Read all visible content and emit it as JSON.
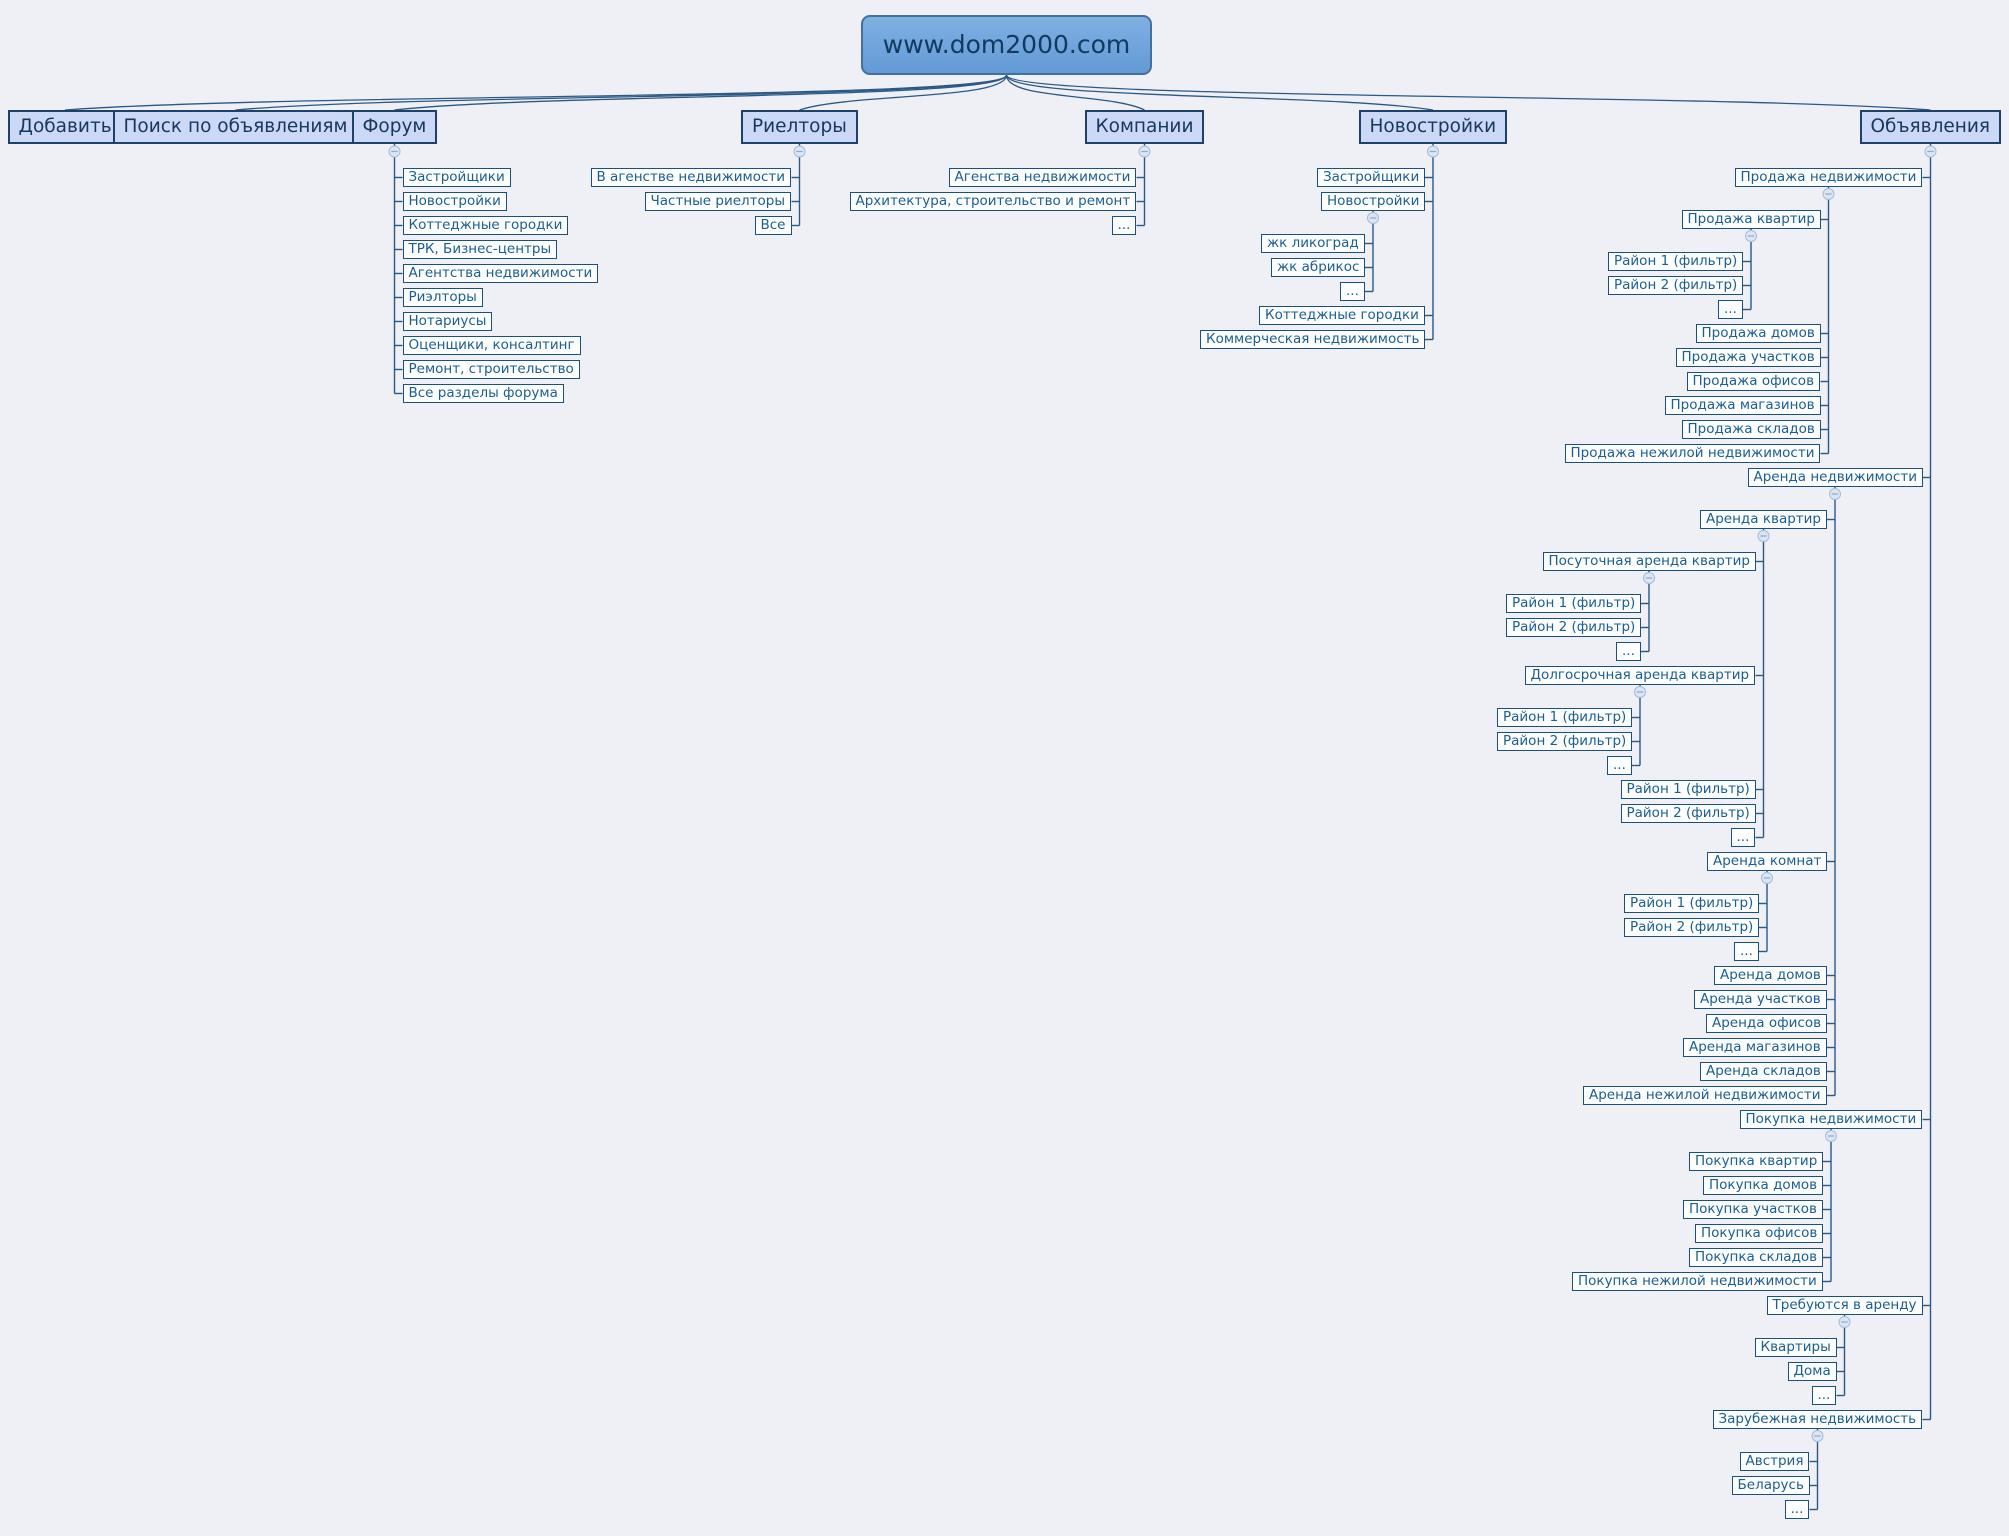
{
  "root": {
    "label": "www.dom2000.com"
  },
  "colors": {
    "page_bg": "#eef0f6",
    "root_fill_top": "#7fb0e2",
    "root_fill_bottom": "#639ad6",
    "root_border": "#41719c",
    "root_text": "#123a61",
    "level1_fill": "#ccd9f6",
    "level1_border": "#1d4168",
    "level1_text": "#17375e",
    "node_fill": "#fcfdff",
    "node_border": "#1c4f7d",
    "node_text": "#1c5e8f",
    "line": "#2b5984",
    "toggle_fill": "#dbe5f4",
    "toggle_border": "#a3bcd9",
    "toggle_glyph": "#8fa9c9"
  },
  "toggle_glyph": "minus",
  "tree": [
    {
      "label": "Добавить"
    },
    {
      "label": "Поиск по объявлениям"
    },
    {
      "label": "Форум",
      "children": [
        "Застройщики",
        "Новостройки",
        "Коттеджные городки",
        "ТРК, Бизнес-центры",
        "Агентства недвижимости",
        "Риэлторы",
        "Нотариусы",
        "Оценщики, консалтинг",
        "Ремонт, строительство",
        "Все разделы форума"
      ]
    },
    {
      "label": "Риелторы",
      "children": [
        "В агенстве недвижимости",
        "Частные риелторы",
        "Все"
      ]
    },
    {
      "label": "Компании",
      "children": [
        "Агенства недвижимости",
        "Архитектура, строительство и ремонт",
        "..."
      ]
    },
    {
      "label": "Новостройки",
      "children": [
        "Застройщики",
        {
          "label": "Новостройки",
          "children": [
            "жк ликоград",
            "жк абрикос",
            "..."
          ]
        },
        "Коттеджные городки",
        "Коммерческая недвижимость"
      ]
    },
    {
      "label": "Объявления",
      "children": [
        {
          "label": "Продажа недвижимости",
          "children": [
            {
              "label": "Продажа квартир",
              "children": [
                "Район 1 (фильтр)",
                "Район 2 (фильтр)",
                "..."
              ]
            },
            "Продажа домов",
            "Продажа участков",
            "Продажа офисов",
            "Продажа магазинов",
            "Продажа складов",
            "Продажа нежилой недвижимости"
          ]
        },
        {
          "label": "Аренда недвижимости",
          "children": [
            {
              "label": "Аренда квартир",
              "children": [
                {
                  "label": "Посуточная аренда квартир",
                  "children": [
                    "Район 1 (фильтр)",
                    "Район 2 (фильтр)",
                    "..."
                  ]
                },
                {
                  "label": "Долгосрочная аренда квартир",
                  "children": [
                    "Район 1 (фильтр)",
                    "Район 2 (фильтр)",
                    "..."
                  ]
                },
                "Район 1 (фильтр)",
                "Район 2 (фильтр)",
                "..."
              ]
            },
            {
              "label": "Аренда комнат",
              "children": [
                "Район 1 (фильтр)",
                "Район 2 (фильтр)",
                "..."
              ]
            },
            "Аренда домов",
            "Аренда участков",
            "Аренда офисов",
            "Аренда магазинов",
            "Аренда складов",
            "Аренда нежилой недвижимости"
          ]
        },
        {
          "label": "Покупка недвижимости",
          "children": [
            "Покупка квартир",
            "Покупка домов",
            "Покупка участков",
            "Покупка офисов",
            "Покупка складов",
            "Покупка нежилой недвижимости"
          ]
        },
        {
          "label": "Требуются в аренду",
          "children": [
            "Квартиры",
            "Дома",
            "..."
          ]
        },
        {
          "label": "Зарубежная недвижимость",
          "children": [
            "Австрия",
            "Беларусь",
            "..."
          ]
        }
      ]
    }
  ]
}
